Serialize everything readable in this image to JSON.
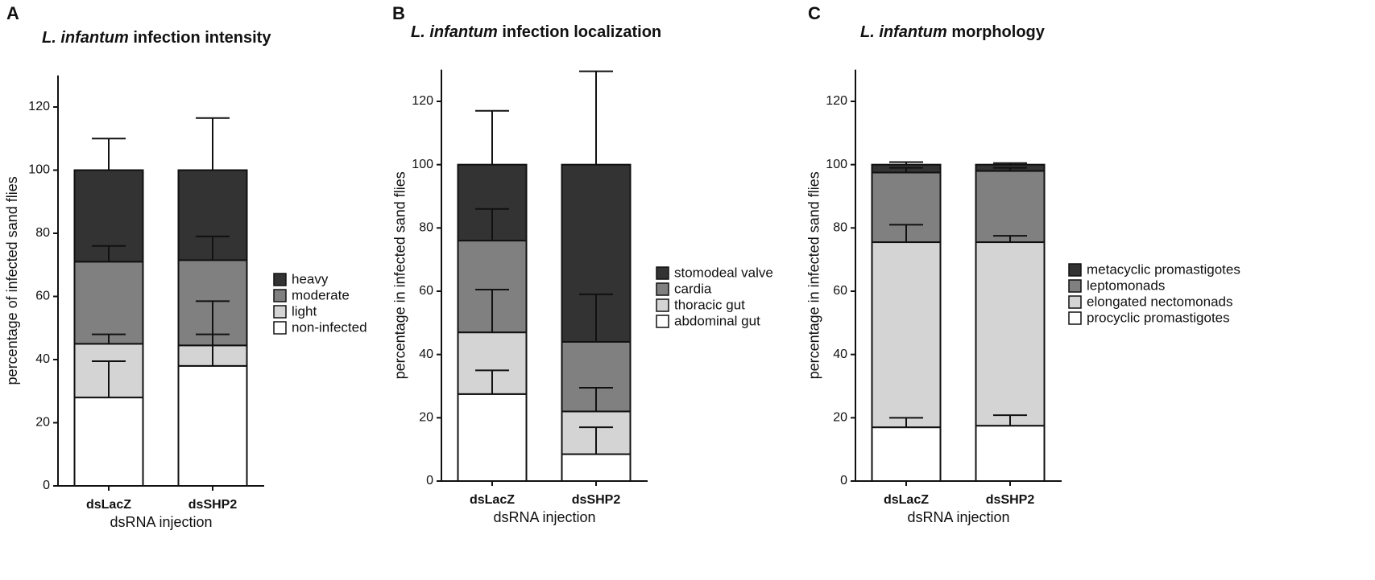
{
  "chart_data": [
    {
      "type": "bar",
      "stacked": true,
      "panel": "A",
      "title": [
        "L. infantum",
        "infection intensity"
      ],
      "y_label": "percentage of infected sand flies",
      "x_label": "dsRNA injection",
      "categories": [
        "dsLacZ",
        "dsSHP2"
      ],
      "ylim": [
        0,
        130
      ],
      "yticks": [
        0,
        20,
        40,
        60,
        80,
        100,
        120
      ],
      "series": [
        {
          "name": "non-infected",
          "color": "#ffffff",
          "values": [
            28,
            38
          ],
          "errors": [
            11.5,
            10
          ]
        },
        {
          "name": "light",
          "color": "#d4d4d4",
          "values": [
            17,
            6.5
          ],
          "errors": [
            3,
            14
          ]
        },
        {
          "name": "moderate",
          "color": "#808080",
          "values": [
            26,
            27
          ],
          "errors": [
            5,
            7.5
          ]
        },
        {
          "name": "heavy",
          "color": "#333333",
          "values": [
            29,
            28.5
          ],
          "errors": [
            10,
            16.5
          ]
        }
      ]
    },
    {
      "type": "bar",
      "stacked": true,
      "panel": "B",
      "title": [
        "L. infantum",
        "infection localization"
      ],
      "y_label": "percentage in infected sand flies",
      "x_label": "dsRNA injection",
      "categories": [
        "dsLacZ",
        "dsSHP2"
      ],
      "ylim": [
        0,
        130
      ],
      "yticks": [
        0,
        20,
        40,
        60,
        80,
        100,
        120
      ],
      "series": [
        {
          "name": "abdominal gut",
          "color": "#ffffff",
          "values": [
            27.5,
            8.5
          ],
          "errors": [
            7.5,
            8.5
          ]
        },
        {
          "name": "thoracic gut",
          "color": "#d4d4d4",
          "values": [
            19.5,
            13.5
          ],
          "errors": [
            13.5,
            7.5
          ]
        },
        {
          "name": "cardia",
          "color": "#808080",
          "values": [
            29,
            22
          ],
          "errors": [
            10,
            15
          ]
        },
        {
          "name": "stomodeal valve",
          "color": "#333333",
          "values": [
            24,
            56
          ],
          "errors": [
            17,
            29.5
          ]
        }
      ]
    },
    {
      "type": "bar",
      "stacked": true,
      "panel": "C",
      "title": [
        "L. infantum",
        "morphology"
      ],
      "y_label": "percentage in infected sand flies",
      "x_label": "dsRNA injection",
      "categories": [
        "dsLacZ",
        "dsSHP2"
      ],
      "ylim": [
        0,
        130
      ],
      "yticks": [
        0,
        20,
        40,
        60,
        80,
        100,
        120
      ],
      "series": [
        {
          "name": "procyclic promastigotes",
          "color": "#ffffff",
          "values": [
            17,
            17.5
          ],
          "errors": [
            3,
            3.3
          ]
        },
        {
          "name": "elongated nectomonads",
          "color": "#d4d4d4",
          "values": [
            58.5,
            58
          ],
          "errors": [
            5.5,
            2
          ]
        },
        {
          "name": "leptomonads",
          "color": "#808080",
          "values": [
            22,
            22.5
          ],
          "errors": [
            1.5,
            1
          ]
        },
        {
          "name": "metacyclic promastigotes",
          "color": "#333333",
          "values": [
            2.5,
            2
          ],
          "errors": [
            0.8,
            0.5
          ]
        }
      ]
    }
  ]
}
